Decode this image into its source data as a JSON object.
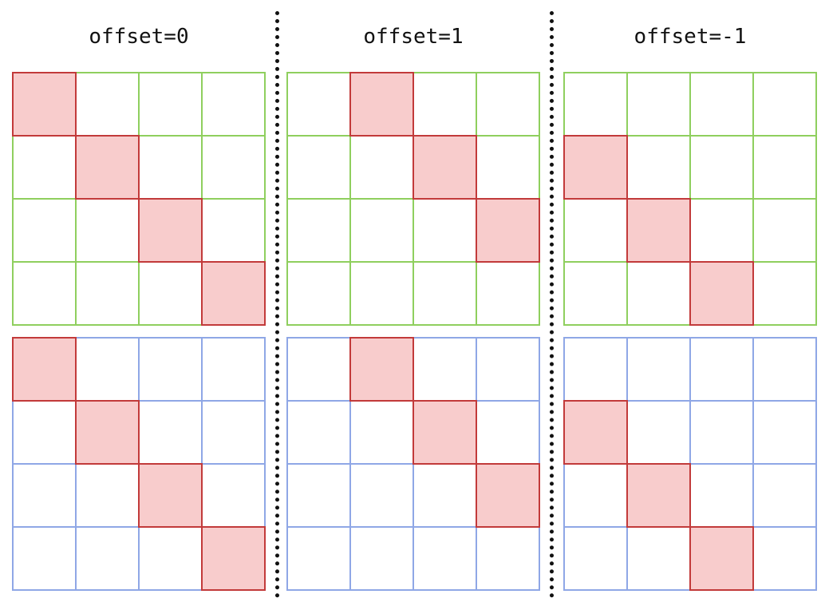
{
  "columns": [
    {
      "title": "offset=0",
      "offset": 0
    },
    {
      "title": "offset=1",
      "offset": 1
    },
    {
      "title": "offset=-1",
      "offset": -1
    }
  ],
  "grid_size": 4,
  "rows": [
    {
      "name": "green",
      "line_color": "#8fcf5e"
    },
    {
      "name": "blue",
      "line_color": "#8fa7e6"
    }
  ],
  "colors": {
    "highlight_fill": "#f8cccc",
    "highlight_stroke": "#c23a3a",
    "divider": "#111111"
  }
}
